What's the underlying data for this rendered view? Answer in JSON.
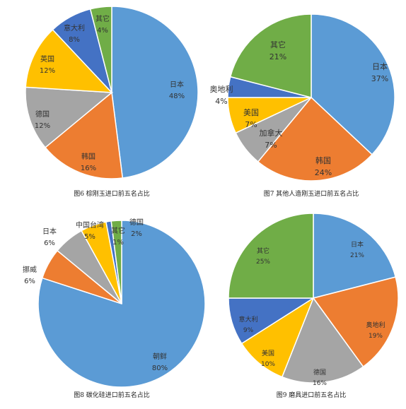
{
  "colors": {
    "blue": "#5B9BD5",
    "orange": "#ED7D31",
    "gray": "#A5A5A5",
    "gold": "#FFC000",
    "navy": "#4472C4",
    "green": "#70AD47",
    "label_text": "#333333",
    "background": "#FFFFFF"
  },
  "chart_data": [
    {
      "type": "pie",
      "caption": "图6 棕刚玉进口前五名占比",
      "slices": [
        {
          "label": "日本",
          "pct_label": "48%",
          "value": 48,
          "color": "#5B9BD5"
        },
        {
          "label": "韩国",
          "pct_label": "16%",
          "value": 16,
          "color": "#ED7D31"
        },
        {
          "label": "德国",
          "pct_label": "12%",
          "value": 12,
          "color": "#A5A5A5"
        },
        {
          "label": "英国",
          "pct_label": "12%",
          "value": 12,
          "color": "#FFC000"
        },
        {
          "label": "意大利",
          "pct_label": "8%",
          "value": 8,
          "color": "#4472C4"
        },
        {
          "label": "其它",
          "pct_label": "4%",
          "value": 4,
          "color": "#70AD47"
        }
      ]
    },
    {
      "type": "pie",
      "caption": "图7 其他人造刚玉进口前五名占比",
      "slices": [
        {
          "label": "日本",
          "pct_label": "37%",
          "value": 37,
          "color": "#5B9BD5"
        },
        {
          "label": "韩国",
          "pct_label": "24%",
          "value": 24,
          "color": "#ED7D31"
        },
        {
          "label": "加拿大",
          "pct_label": "7%",
          "value": 7,
          "color": "#A5A5A5"
        },
        {
          "label": "美国",
          "pct_label": "7%",
          "value": 7,
          "color": "#FFC000"
        },
        {
          "label": "奥地利",
          "pct_label": "4%",
          "value": 4,
          "color": "#4472C4"
        },
        {
          "label": "其它",
          "pct_label": "21%",
          "value": 21,
          "color": "#70AD47"
        }
      ]
    },
    {
      "type": "pie",
      "caption": "图8 碳化硅进口前五名占比",
      "slices": [
        {
          "label": "朝鲜",
          "pct_label": "80%",
          "value": 80,
          "color": "#5B9BD5"
        },
        {
          "label": "挪威",
          "pct_label": "6%",
          "value": 6,
          "color": "#ED7D31"
        },
        {
          "label": "日本",
          "pct_label": "6%",
          "value": 6,
          "color": "#A5A5A5"
        },
        {
          "label": "中国台湾",
          "pct_label": "5%",
          "value": 5,
          "color": "#FFC000"
        },
        {
          "label": "其它",
          "pct_label": "1%",
          "value": 1,
          "color": "#4472C4"
        },
        {
          "label": "德国",
          "pct_label": "2%",
          "value": 2,
          "color": "#70AD47"
        }
      ]
    },
    {
      "type": "pie",
      "caption": "图9 磨具进口前五名占比",
      "slices": [
        {
          "label": "日本",
          "pct_label": "21%",
          "value": 21,
          "color": "#5B9BD5"
        },
        {
          "label": "奥地利",
          "pct_label": "19%",
          "value": 19,
          "color": "#ED7D31"
        },
        {
          "label": "德国",
          "pct_label": "16%",
          "value": 16,
          "color": "#A5A5A5"
        },
        {
          "label": "美国",
          "pct_label": "10%",
          "value": 10,
          "color": "#FFC000"
        },
        {
          "label": "意大利",
          "pct_label": "9%",
          "value": 9,
          "color": "#4472C4"
        },
        {
          "label": "其它",
          "pct_label": "25%",
          "value": 25,
          "color": "#70AD47"
        }
      ]
    }
  ]
}
